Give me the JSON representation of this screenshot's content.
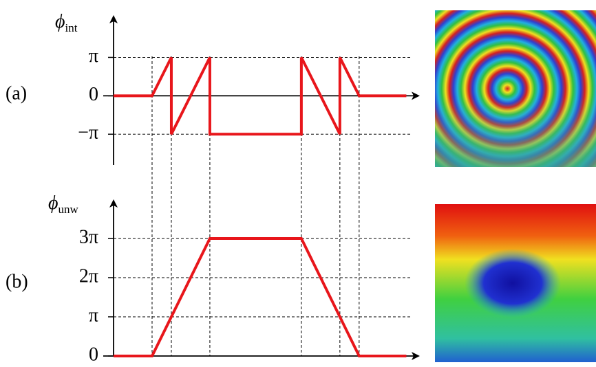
{
  "chart_data": [
    {
      "type": "line",
      "panel_label": "(a)",
      "ylabel": "ϕ",
      "ylabel_sub": "int",
      "x": [
        0,
        2,
        3,
        3,
        5,
        5,
        9.75,
        9.75,
        11.75,
        11.75,
        12.75,
        15.2
      ],
      "series": [
        {
          "color": "#e8161b",
          "values": [
            0,
            0,
            1,
            -1,
            1,
            -1,
            -1,
            1,
            -1,
            1,
            0,
            0
          ]
        }
      ],
      "xlim": [
        0,
        15.9
      ],
      "ylim": [
        -1.8,
        2.1
      ],
      "yticks": [
        {
          "value": -1,
          "label": "−π"
        },
        0,
        {
          "value": 1,
          "label": "π"
        }
      ]
    },
    {
      "type": "line",
      "panel_label": "(b)",
      "ylabel": "ϕ",
      "ylabel_sub": "unw",
      "x": [
        0,
        2,
        5,
        9.75,
        12.75,
        15.2
      ],
      "series": [
        {
          "color": "#e8161b",
          "values": [
            0,
            0,
            3,
            3,
            0,
            0
          ]
        }
      ],
      "xlim": [
        0,
        15.9
      ],
      "ylim": [
        0,
        4
      ],
      "yticks": [
        0,
        {
          "value": 1,
          "label": "π"
        },
        {
          "value": 2,
          "label": "2π"
        },
        {
          "value": 3,
          "label": "3π"
        }
      ]
    }
  ]
}
